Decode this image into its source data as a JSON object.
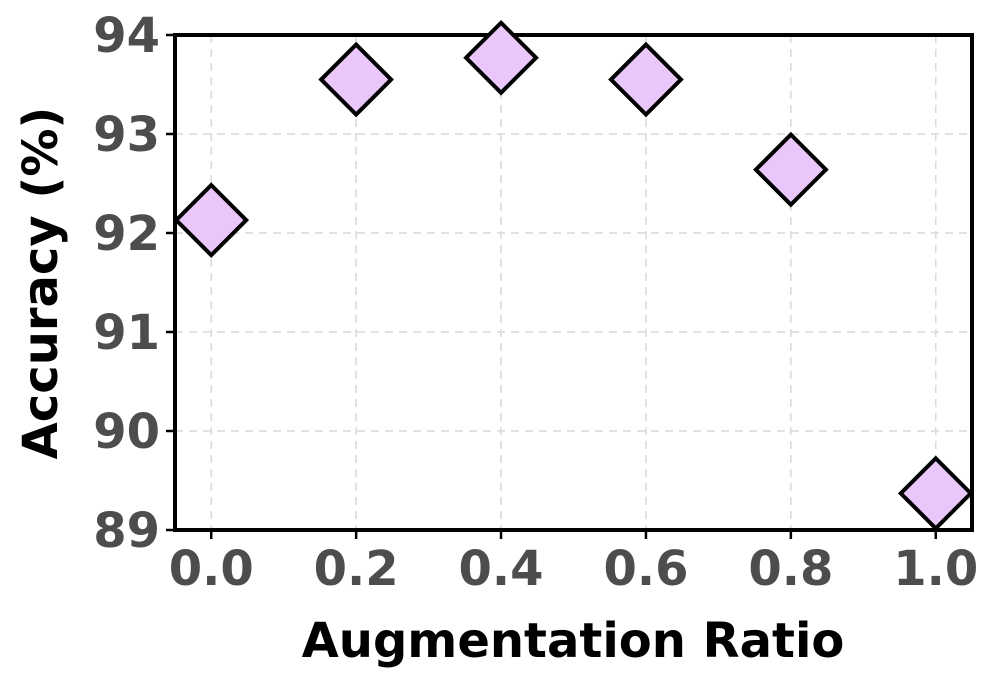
{
  "chart_data": {
    "type": "scatter",
    "xlabel": "Augmentation Ratio",
    "ylabel": "Accuracy (%)",
    "x": [
      0.0,
      0.2,
      0.4,
      0.6,
      0.8,
      1.0
    ],
    "y": [
      92.13,
      93.55,
      93.77,
      93.55,
      92.64,
      89.37
    ],
    "x_ticks": [
      "0.0",
      "0.2",
      "0.4",
      "0.6",
      "0.8",
      "1.0"
    ],
    "y_ticks": [
      "89",
      "90",
      "91",
      "92",
      "93",
      "94"
    ],
    "xlim": [
      -0.05,
      1.05
    ],
    "ylim": [
      89,
      94
    ],
    "grid": true,
    "marker": "diamond",
    "marker_color": "#eac7fb",
    "marker_edge_color": "#000000"
  }
}
